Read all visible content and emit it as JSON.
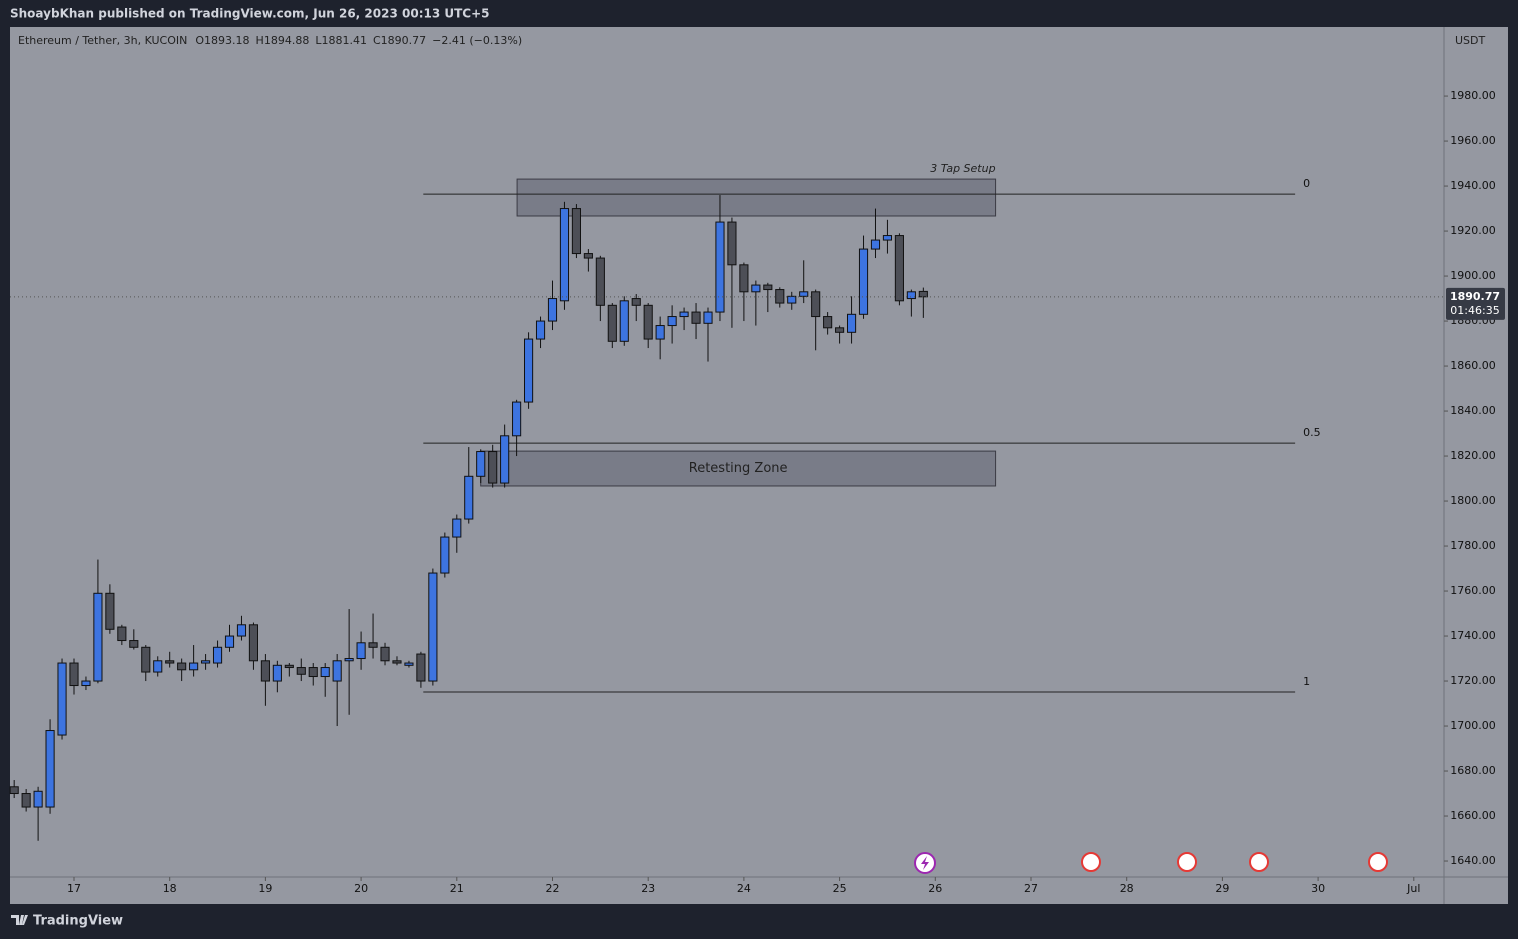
{
  "header": {
    "publisher": "ShoaybKhan published on TradingView.com, Jun 26, 2023 00:13 UTC+5",
    "footer": "TradingView"
  },
  "chart_data": {
    "type": "candlestick",
    "symbol": "Ethereum / Tether, 3h, KUCOIN",
    "ohlc_labels": [
      "O",
      "H",
      "L",
      "C"
    ],
    "change": "−2.41 (−0.13%)",
    "currency": "USDT",
    "countdown": "01:46:35",
    "up_color": "#3d74e0",
    "down_color": "#4d4f57",
    "x": [
      16.375,
      16.5,
      16.625,
      16.75,
      16.875,
      17,
      17.125,
      17.25,
      17.375,
      17.5,
      17.625,
      17.75,
      17.875,
      18,
      18.125,
      18.25,
      18.375,
      18.5,
      18.625,
      18.75,
      18.875,
      19,
      19.125,
      19.25,
      19.375,
      19.5,
      19.625,
      19.75,
      19.875,
      20,
      20.125,
      20.25,
      20.375,
      20.5,
      20.625,
      20.75,
      20.875,
      21,
      21.125,
      21.25,
      21.375,
      21.5,
      21.625,
      21.75,
      21.875,
      22,
      22.125,
      22.25,
      22.375,
      22.5,
      22.625,
      22.75,
      22.875,
      23,
      23.125,
      23.25,
      23.375,
      23.5,
      23.625,
      23.75,
      23.875,
      24,
      24.125,
      24.25,
      24.375,
      24.5,
      24.625,
      24.75,
      24.875,
      25,
      25.125,
      25.25,
      25.375,
      25.5,
      25.625,
      25.75,
      25.875
    ],
    "open": [
      1673,
      1670,
      1664,
      1664,
      1696,
      1728,
      1718,
      1720,
      1759,
      1744,
      1738,
      1735,
      1724,
      1729,
      1728,
      1725,
      1728,
      1728,
      1735,
      1740,
      1745,
      1729,
      1720,
      1727,
      1726,
      1726,
      1722,
      1720,
      1729,
      1730,
      1737,
      1735,
      1729,
      1727,
      1732,
      1720,
      1768,
      1784,
      1792,
      1811,
      1822,
      1808,
      1829,
      1844,
      1872,
      1880,
      1889,
      1930,
      1910,
      1908,
      1887,
      1871,
      1890,
      1887,
      1872,
      1878,
      1882,
      1884,
      1879,
      1884,
      1924,
      1905,
      1893,
      1896,
      1894,
      1888,
      1891,
      1893,
      1882,
      1877,
      1875,
      1883,
      1912,
      1916,
      1918,
      1890,
      1893.18
    ],
    "high": [
      1676,
      1672,
      1673,
      1703,
      1730,
      1730,
      1722,
      1774,
      1763,
      1745,
      1743,
      1736,
      1731,
      1733,
      1730,
      1736,
      1732,
      1738,
      1745,
      1749,
      1746,
      1732,
      1729,
      1728,
      1730,
      1728,
      1728,
      1732,
      1752,
      1742,
      1750,
      1737,
      1731,
      1729,
      1733,
      1770,
      1786,
      1794,
      1824,
      1823,
      1825,
      1834,
      1845,
      1875,
      1882,
      1898,
      1933,
      1932,
      1912,
      1909,
      1888,
      1891,
      1892,
      1888,
      1882,
      1887,
      1886,
      1888,
      1886,
      1936,
      1926,
      1906,
      1898,
      1897,
      1895,
      1893,
      1907,
      1894,
      1884,
      1878,
      1891,
      1918,
      1930,
      1925,
      1919,
      1894,
      1894.88
    ],
    "low": [
      1668,
      1662,
      1649,
      1661,
      1694,
      1714,
      1716,
      1719,
      1741,
      1736,
      1734,
      1720,
      1722,
      1726,
      1720,
      1722,
      1725,
      1726,
      1733,
      1738,
      1725,
      1709,
      1715,
      1722,
      1720,
      1718,
      1713,
      1700,
      1705,
      1725,
      1730,
      1727,
      1727,
      1726,
      1717,
      1718,
      1766,
      1777,
      1790,
      1808,
      1806,
      1806,
      1820,
      1841,
      1868,
      1876,
      1885,
      1908,
      1902,
      1880,
      1868,
      1869,
      1880,
      1868,
      1863,
      1870,
      1876,
      1872,
      1862,
      1880,
      1877,
      1880,
      1878,
      1884,
      1886,
      1885,
      1888,
      1867,
      1874,
      1870,
      1870,
      1881,
      1908,
      1910,
      1887,
      1882,
      1881.41
    ],
    "close": [
      1670,
      1664,
      1671,
      1698,
      1728,
      1718,
      1720,
      1759,
      1743,
      1738,
      1735,
      1724,
      1729,
      1728,
      1725,
      1728,
      1729,
      1735,
      1740,
      1745,
      1729,
      1720,
      1727,
      1726,
      1723,
      1722,
      1726,
      1729,
      1730,
      1737,
      1735,
      1729,
      1728,
      1728,
      1720,
      1768,
      1784,
      1792,
      1811,
      1822,
      1808,
      1829,
      1844,
      1872,
      1880,
      1890,
      1930,
      1910,
      1908,
      1887,
      1871,
      1889,
      1887,
      1872,
      1878,
      1882,
      1884,
      1879,
      1884,
      1924,
      1905,
      1893,
      1896,
      1894,
      1888,
      1891,
      1893,
      1882,
      1877,
      1875,
      1883,
      1912,
      1916,
      1918,
      1889,
      1893,
      1890.77
    ],
    "xlim": [
      16.3313,
      31.3156
    ],
    "xticks": [
      17,
      18,
      19,
      20,
      21,
      22,
      23,
      24,
      25,
      26,
      27,
      28,
      29,
      30,
      {
        "value": 31,
        "label": "Jul"
      }
    ],
    "ylim": [
      1632.9,
      2010.7
    ],
    "yticks": [
      {
        "value": 1640,
        "label": "1640.00"
      },
      {
        "value": 1660,
        "label": "1660.00"
      },
      {
        "value": 1680,
        "label": "1680.00"
      },
      {
        "value": 1700,
        "label": "1700.00"
      },
      {
        "value": 1720,
        "label": "1720.00"
      },
      {
        "value": 1740,
        "label": "1740.00"
      },
      {
        "value": 1760,
        "label": "1760.00"
      },
      {
        "value": 1780,
        "label": "1780.00"
      },
      {
        "value": 1800,
        "label": "1800.00"
      },
      {
        "value": 1820,
        "label": "1820.00"
      },
      {
        "value": 1840,
        "label": "1840.00"
      },
      {
        "value": 1860,
        "label": "1860.00"
      },
      {
        "value": 1880,
        "label": "1880.00"
      },
      {
        "value": 1900,
        "label": "1900.00"
      },
      {
        "value": 1920,
        "label": "1920.00"
      },
      {
        "value": 1940,
        "label": "1940.00"
      },
      {
        "value": 1960,
        "label": "1960.00"
      },
      {
        "value": 1980,
        "label": "1980.00"
      }
    ],
    "boxes": [
      {
        "label": "3 Tap Setup",
        "x": [
          21.63,
          26.63
        ],
        "y": [
          1926.7,
          1943.1
        ],
        "label_position": "above"
      },
      {
        "label": "Retesting Zone",
        "x": [
          21.25,
          26.63
        ],
        "y": [
          1806.7,
          1822.2
        ],
        "label_position": "center"
      }
    ],
    "fib": {
      "levels": [
        0,
        0.5,
        1
      ],
      "high": 1936.4,
      "low": 1715.1,
      "x": [
        20.65,
        29.76
      ]
    }
  }
}
